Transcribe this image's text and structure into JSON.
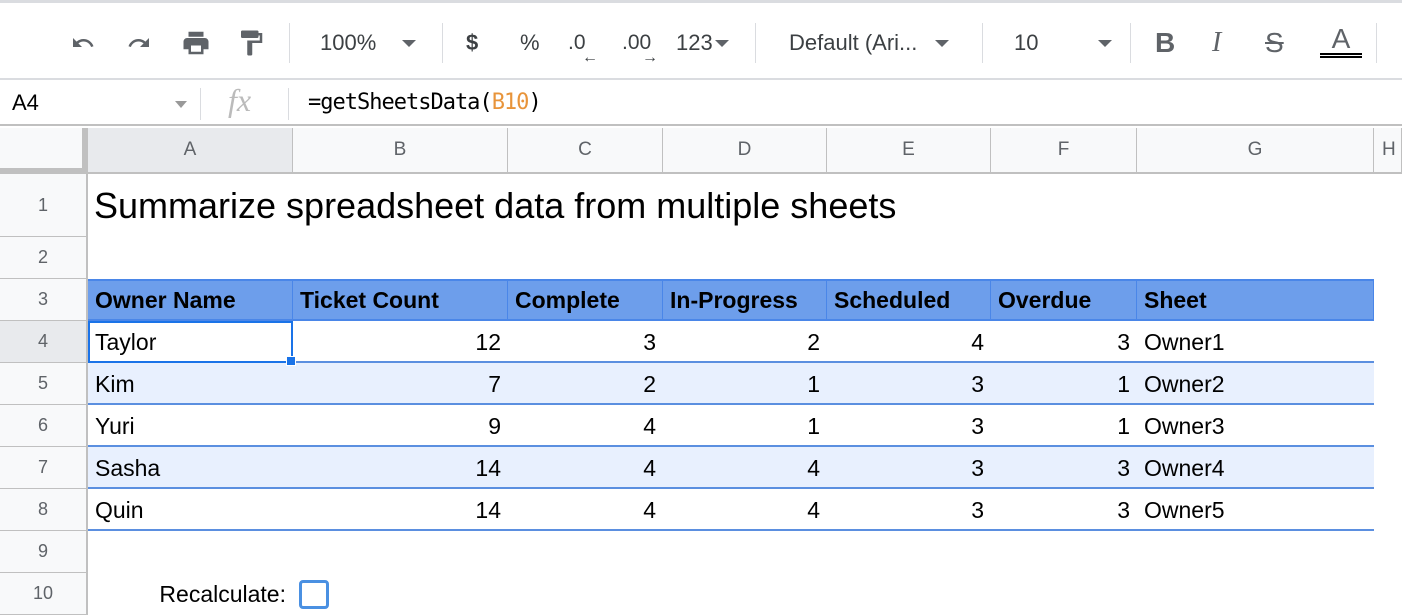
{
  "toolbar": {
    "zoom": "100%",
    "currency": "$",
    "percent": "%",
    "decrease_decimal": ".0",
    "increase_decimal": ".00",
    "more_formats": "123",
    "font": "Default (Ari...",
    "font_size": "10",
    "bold": "B",
    "italic": "I",
    "strikethrough": "S",
    "text_color": "A"
  },
  "formula_bar": {
    "cell_ref": "A4",
    "fx": "fx",
    "formula_prefix": "=getSheetsData(",
    "formula_ref": "B10",
    "formula_suffix": ")"
  },
  "columns": [
    "A",
    "B",
    "C",
    "D",
    "E",
    "F",
    "G",
    "H"
  ],
  "rows": [
    "1",
    "2",
    "3",
    "4",
    "5",
    "6",
    "7",
    "8",
    "9",
    "10"
  ],
  "title": "Summarize spreadsheet data from multiple sheets",
  "table": {
    "headers": [
      "Owner Name",
      "Ticket Count",
      "Complete",
      "In-Progress",
      "Scheduled",
      "Overdue",
      "Sheet"
    ],
    "rows": [
      [
        "Taylor",
        "12",
        "3",
        "2",
        "4",
        "3",
        "Owner1"
      ],
      [
        "Kim",
        "7",
        "2",
        "1",
        "3",
        "1",
        "Owner2"
      ],
      [
        "Yuri",
        "9",
        "4",
        "1",
        "3",
        "1",
        "Owner3"
      ],
      [
        "Sasha",
        "14",
        "4",
        "4",
        "3",
        "3",
        "Owner4"
      ],
      [
        "Quin",
        "14",
        "4",
        "4",
        "3",
        "3",
        "Owner5"
      ]
    ]
  },
  "recalculate_label": "Recalculate:",
  "recalculate_checked": false,
  "colors": {
    "header_fill": "#6d9eeb",
    "band_fill": "#e8f0fe",
    "selection": "#1a73e8",
    "formula_ref": "#e8943a"
  }
}
